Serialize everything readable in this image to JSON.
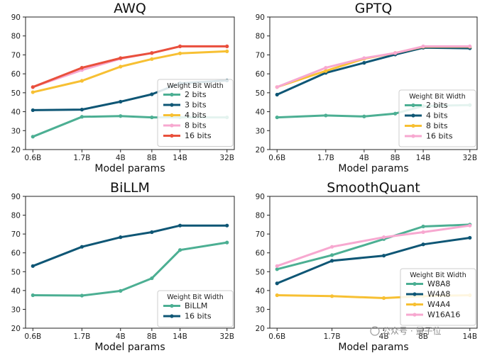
{
  "chart_data": [
    {
      "type": "line",
      "title": "AWQ",
      "xlabel": "Model params",
      "ylabel": "",
      "categories": [
        "0.6B",
        "1.7B",
        "4B",
        "8B",
        "14B",
        "32B"
      ],
      "ylim": [
        20,
        90
      ],
      "yticks": [
        20,
        30,
        40,
        50,
        60,
        70,
        80,
        90
      ],
      "grid": false,
      "legend": {
        "title": "Weight Bit Width",
        "position": "center-right"
      },
      "series": [
        {
          "name": "2 bits",
          "color": "#4caf93",
          "values": [
            26.8,
            37.3,
            37.7,
            37.0,
            37.0,
            37.0
          ]
        },
        {
          "name": "3 bits",
          "color": "#0e5675",
          "values": [
            40.8,
            41.1,
            45.3,
            49.2,
            55.0,
            56.5
          ]
        },
        {
          "name": "4 bits",
          "color": "#f7c033",
          "values": [
            50.3,
            56.3,
            63.8,
            67.8,
            70.8,
            71.9
          ]
        },
        {
          "name": "8 bits",
          "color": "#f7a8d0",
          "values": [
            53.0,
            62.0,
            68.0,
            71.0,
            74.5,
            74.5
          ]
        },
        {
          "name": "16 bits",
          "color": "#e9503c",
          "values": [
            53.0,
            63.2,
            68.3,
            71.0,
            74.5,
            74.5
          ]
        }
      ]
    },
    {
      "type": "line",
      "title": "GPTQ",
      "xlabel": "Model params",
      "ylabel": "",
      "categories": [
        "0.6B",
        "1.7B",
        "4B",
        "8B",
        "14B",
        "32B"
      ],
      "ylim": [
        20,
        90
      ],
      "yticks": [
        20,
        30,
        40,
        50,
        60,
        70,
        80,
        90
      ],
      "grid": false,
      "legend": {
        "title": "Weight Bit Width",
        "position": "center-right"
      },
      "series": [
        {
          "name": "2 bits",
          "color": "#4caf93",
          "values": [
            37.0,
            38.0,
            37.5,
            39.0,
            43.0,
            43.5
          ]
        },
        {
          "name": "4 bits",
          "color": "#0e5675",
          "values": [
            49.0,
            60.5,
            65.8,
            70.2,
            73.8,
            73.5
          ]
        },
        {
          "name": "8 bits",
          "color": "#f7c033",
          "values": [
            53.0,
            61.5,
            68.0,
            71.0,
            74.3,
            74.3
          ]
        },
        {
          "name": "16 bits",
          "color": "#f7a8d0",
          "values": [
            53.0,
            63.2,
            68.3,
            71.0,
            74.5,
            74.5
          ]
        }
      ]
    },
    {
      "type": "line",
      "title": "BiLLM",
      "xlabel": "Model params",
      "ylabel": "",
      "categories": [
        "0.6B",
        "1.7B",
        "4B",
        "8B",
        "14B",
        "32B"
      ],
      "ylim": [
        20,
        90
      ],
      "yticks": [
        20,
        30,
        40,
        50,
        60,
        70,
        80,
        90
      ],
      "grid": false,
      "legend": {
        "title": "Weight Bit Width",
        "position": "lower-right"
      },
      "series": [
        {
          "name": "BiLLM",
          "color": "#4caf93",
          "values": [
            37.5,
            37.3,
            39.8,
            46.5,
            61.5,
            65.5
          ]
        },
        {
          "name": "16 bits",
          "color": "#0e5675",
          "values": [
            53.0,
            63.2,
            68.3,
            71.0,
            74.5,
            74.5
          ]
        }
      ]
    },
    {
      "type": "line",
      "title": "SmoothQuant",
      "xlabel": "Model params",
      "ylabel": "",
      "categories": [
        "0.6B",
        "1.7B",
        "4B",
        "8B",
        "14B"
      ],
      "ylim": [
        20,
        90
      ],
      "yticks": [
        20,
        30,
        40,
        50,
        60,
        70,
        80,
        90
      ],
      "grid": false,
      "legend": {
        "title": "Weight Bit Width",
        "position": "lower-right"
      },
      "series": [
        {
          "name": "W8A8",
          "color": "#4caf93",
          "values": [
            51.3,
            58.8,
            67.3,
            74.0,
            75.0
          ]
        },
        {
          "name": "W4A8",
          "color": "#0e5675",
          "values": [
            43.8,
            55.8,
            58.5,
            64.5,
            68.0
          ]
        },
        {
          "name": "W4A4",
          "color": "#f7c033",
          "values": [
            37.5,
            37.0,
            36.0,
            37.0,
            37.5
          ]
        },
        {
          "name": "W16A16",
          "color": "#f7a8d0",
          "values": [
            53.0,
            63.2,
            68.3,
            71.0,
            74.5
          ]
        }
      ]
    }
  ],
  "watermark": "公众号 · 量子位"
}
